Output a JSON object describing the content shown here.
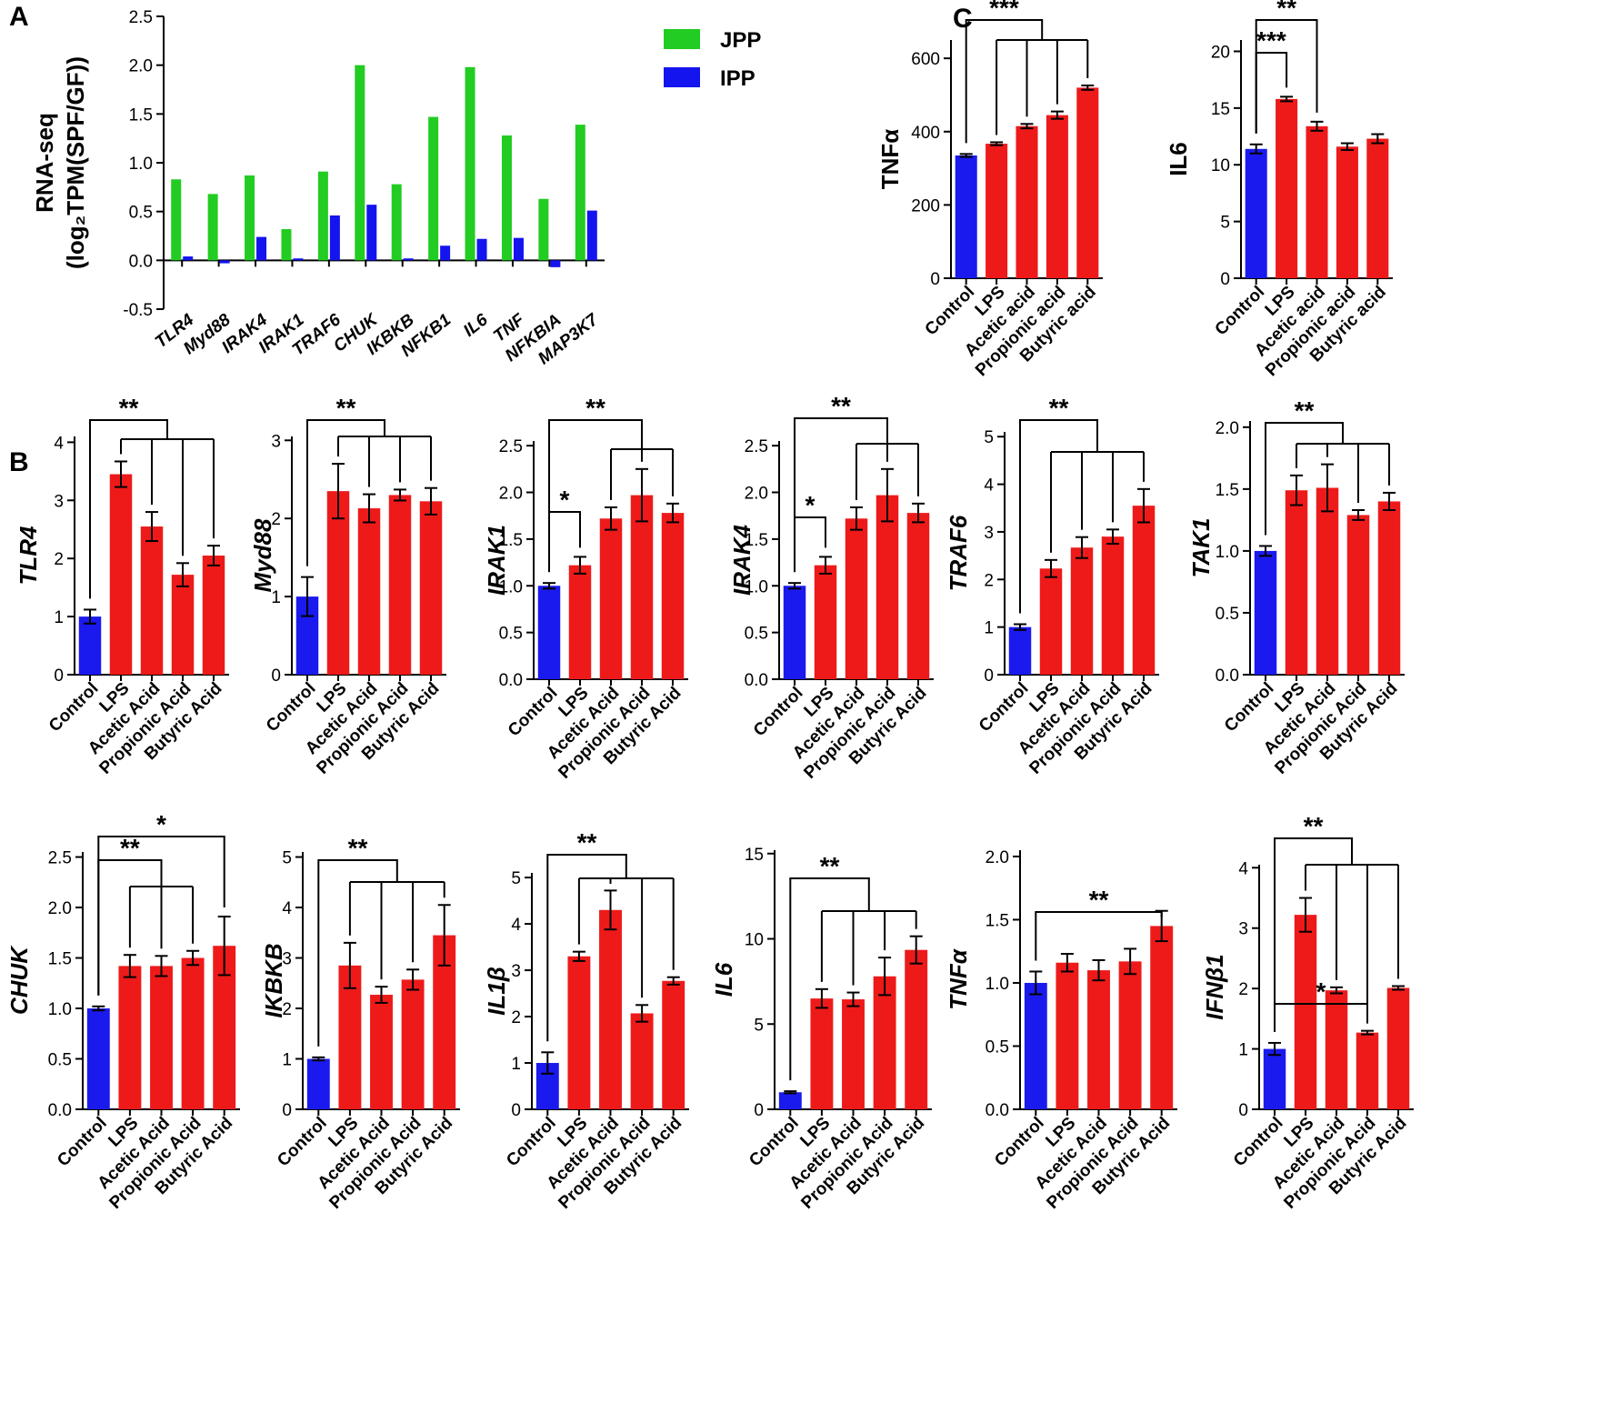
{
  "colors": {
    "jpp": "#22cc22",
    "ipp": "#1414ee",
    "control": "#1a1aee",
    "treatment": "#ee1a1a"
  },
  "panel_letters": [
    "A",
    "B",
    "C"
  ],
  "chart_data": [
    {
      "id": "A",
      "type": "bar",
      "title": "",
      "ylabel_line1": "RNA-seq",
      "ylabel_line2": "(log₂TPM(SPF/GF))",
      "ylim": [
        -0.5,
        2.5
      ],
      "yticks": [
        -0.5,
        0.0,
        0.5,
        1.0,
        1.5,
        2.0,
        2.5
      ],
      "categories": [
        "TLR4",
        "Myd88",
        "IRAK4",
        "IRAK1",
        "TRAF6",
        "CHUK",
        "IKBKB",
        "NFKB1",
        "IL6",
        "TNF",
        "NFKBIA",
        "MAP3K7"
      ],
      "series": [
        {
          "name": "JPP",
          "values": [
            0.83,
            0.68,
            0.87,
            0.32,
            0.91,
            2.0,
            0.78,
            1.47,
            1.98,
            1.28,
            0.63,
            1.39
          ]
        },
        {
          "name": "IPP",
          "values": [
            0.04,
            -0.03,
            0.24,
            0.02,
            0.46,
            0.57,
            0.02,
            0.15,
            0.22,
            0.23,
            -0.07,
            0.51
          ]
        }
      ],
      "legend": [
        "JPP",
        "IPP"
      ]
    },
    {
      "id": "C1",
      "type": "bar",
      "ylabel": "TNFα",
      "italic": false,
      "categories": [
        "Control",
        "LPS",
        "Acetic acid",
        "Propionic acid",
        "Butyric acid"
      ],
      "values": [
        335,
        367,
        415,
        445,
        520
      ],
      "errors": [
        4,
        4,
        6,
        10,
        6
      ],
      "ylim": [
        0,
        650
      ],
      "yticks": [
        0,
        200,
        400,
        600
      ],
      "annotations": [
        "***"
      ]
    },
    {
      "id": "C2",
      "type": "bar",
      "ylabel": "IL6",
      "italic": false,
      "categories": [
        "Control",
        "LPS",
        "Acetic acid",
        "Propionic acid",
        "Butyric acid"
      ],
      "values": [
        11.4,
        15.8,
        13.4,
        11.6,
        12.3
      ],
      "errors": [
        0.4,
        0.2,
        0.4,
        0.3,
        0.4
      ],
      "ylim": [
        0,
        21
      ],
      "yticks": [
        0,
        5,
        10,
        15,
        20
      ],
      "annotations": [
        "**",
        "***"
      ]
    },
    {
      "id": "B1",
      "type": "bar",
      "ylabel": "TLR4",
      "italic": true,
      "categories": [
        "Control",
        "LPS",
        "Acetic Acid",
        "Propionic Acid",
        "Butyric Acid"
      ],
      "values": [
        1.0,
        3.45,
        2.55,
        1.72,
        2.05
      ],
      "errors": [
        0.12,
        0.22,
        0.25,
        0.2,
        0.17
      ],
      "ylim": [
        0,
        4.1
      ],
      "yticks": [
        0,
        1,
        2,
        3,
        4
      ],
      "annotations": [
        "**"
      ]
    },
    {
      "id": "B2",
      "type": "bar",
      "ylabel": "Myd88",
      "italic": true,
      "categories": [
        "Control",
        "LPS",
        "Acetic Acid",
        "Propionic Acid",
        "Butyric Acid"
      ],
      "values": [
        1.0,
        2.35,
        2.13,
        2.3,
        2.22
      ],
      "errors": [
        0.25,
        0.35,
        0.18,
        0.07,
        0.17
      ],
      "ylim": [
        0,
        3.05
      ],
      "yticks": [
        0,
        1,
        2,
        3
      ],
      "annotations": [
        "**"
      ]
    },
    {
      "id": "B3",
      "type": "bar",
      "ylabel": "IRAK1",
      "italic": true,
      "categories": [
        "Control",
        "LPS",
        "Acetic Acid",
        "Propionic Acid",
        "Butyric Acid"
      ],
      "values": [
        1.0,
        1.22,
        1.72,
        1.97,
        1.78
      ],
      "errors": [
        0.03,
        0.09,
        0.12,
        0.28,
        0.1
      ],
      "ylim": [
        0,
        2.55
      ],
      "yticks": [
        "0.0",
        "0.5",
        "1.0",
        "1.5",
        "2.0",
        "2.5"
      ],
      "annotations": [
        "**",
        "*"
      ]
    },
    {
      "id": "B4",
      "type": "bar",
      "ylabel": "IRAK4",
      "italic": true,
      "categories": [
        "Control",
        "LPS",
        "Acetic Acid",
        "Propionic Acid",
        "Butyric Acid"
      ],
      "values": [
        1.0,
        1.22,
        1.72,
        1.97,
        1.78
      ],
      "errors": [
        0.03,
        0.09,
        0.12,
        0.28,
        0.1
      ],
      "ylim": [
        0,
        2.55
      ],
      "yticks": [
        "0.0",
        "0.5",
        "1.0",
        "1.5",
        "2.0",
        "2.5"
      ],
      "annotations": [
        "**",
        "*"
      ]
    },
    {
      "id": "B5",
      "type": "bar",
      "ylabel": "TRAF6",
      "italic": true,
      "categories": [
        "Control",
        "LPS",
        "Acetic Acid",
        "Propionic Acid",
        "Butyric Acid"
      ],
      "values": [
        1.0,
        2.23,
        2.67,
        2.9,
        3.55
      ],
      "errors": [
        0.06,
        0.18,
        0.22,
        0.15,
        0.35
      ],
      "ylim": [
        0,
        5.1
      ],
      "yticks": [
        0,
        1,
        2,
        3,
        4,
        5
      ],
      "annotations": [
        "**"
      ]
    },
    {
      "id": "B6",
      "type": "bar",
      "ylabel": "TAK1",
      "italic": true,
      "categories": [
        "Control",
        "LPS",
        "Acetic Acid",
        "Propionic Acid",
        "Butyric Acid"
      ],
      "values": [
        1.0,
        1.49,
        1.51,
        1.29,
        1.4
      ],
      "errors": [
        0.04,
        0.12,
        0.19,
        0.04,
        0.07
      ],
      "ylim": [
        0,
        2.05
      ],
      "yticks": [
        "0.0",
        "0.5",
        "1.0",
        "1.5",
        "2.0"
      ],
      "annotations": [
        "**"
      ]
    },
    {
      "id": "B7",
      "type": "bar",
      "ylabel": "CHUK",
      "italic": true,
      "categories": [
        "Control",
        "LPS",
        "Acetic Acid",
        "Propionic Acid",
        "Butyric Acid"
      ],
      "values": [
        1.0,
        1.42,
        1.42,
        1.5,
        1.62
      ],
      "errors": [
        0.02,
        0.11,
        0.1,
        0.07,
        0.29
      ],
      "ylim": [
        0,
        2.55
      ],
      "yticks": [
        "0.0",
        "0.5",
        "1.0",
        "1.5",
        "2.0",
        "2.5"
      ],
      "annotations": [
        "*",
        "**"
      ]
    },
    {
      "id": "B8",
      "type": "bar",
      "ylabel": "IKBKB",
      "italic": true,
      "categories": [
        "Control",
        "LPS",
        "Acetic Acid",
        "Propionic Acid",
        "Butyric Acid"
      ],
      "values": [
        1.0,
        2.85,
        2.27,
        2.57,
        3.45
      ],
      "errors": [
        0.03,
        0.45,
        0.16,
        0.2,
        0.6
      ],
      "ylim": [
        0,
        5.1
      ],
      "yticks": [
        0,
        1,
        2,
        3,
        4,
        5
      ],
      "annotations": [
        "**"
      ]
    },
    {
      "id": "B9",
      "type": "bar",
      "ylabel": "IL1β",
      "italic": true,
      "categories": [
        "Control",
        "LPS",
        "Acetic Acid",
        "Propionic Acid",
        "Butyric Acid"
      ],
      "values": [
        1.0,
        3.3,
        4.3,
        2.07,
        2.77
      ],
      "errors": [
        0.23,
        0.1,
        0.42,
        0.18,
        0.08
      ],
      "ylim": [
        0,
        5.1
      ],
      "yticks": [
        0,
        1,
        2,
        3,
        4,
        5
      ],
      "annotations": [
        "**"
      ]
    },
    {
      "id": "B10",
      "type": "bar",
      "ylabel": "IL6",
      "italic": true,
      "categories": [
        "Control",
        "LPS",
        "Acetic Acid",
        "Propionic Acid",
        "Butyric Acid"
      ],
      "values": [
        1.0,
        6.5,
        6.45,
        7.8,
        9.35
      ],
      "errors": [
        0.06,
        0.55,
        0.4,
        1.1,
        0.8
      ],
      "ylim": [
        0,
        15.2
      ],
      "yticks": [
        0,
        5,
        10,
        15
      ],
      "annotations": [
        "**"
      ]
    },
    {
      "id": "B11",
      "type": "bar",
      "ylabel": "TNFα",
      "italic": true,
      "categories": [
        "Control",
        "LPS",
        "Acetic Acid",
        "Propionic Acid",
        "Butyric Acid"
      ],
      "values": [
        1.0,
        1.16,
        1.1,
        1.17,
        1.45
      ],
      "errors": [
        0.09,
        0.07,
        0.08,
        0.1,
        0.12
      ],
      "ylim": [
        0,
        2.05
      ],
      "yticks": [
        "0.0",
        "0.5",
        "1.0",
        "1.5",
        "2.0"
      ],
      "annotations": [
        "**"
      ]
    },
    {
      "id": "B12",
      "type": "bar",
      "ylabel": "IFNβ1",
      "italic": true,
      "categories": [
        "Control",
        "LPS",
        "Acetic Acid",
        "Propionic Acid",
        "Butyric Acid"
      ],
      "values": [
        1.0,
        3.22,
        1.97,
        1.27,
        2.01
      ],
      "errors": [
        0.1,
        0.28,
        0.05,
        0.03,
        0.03
      ],
      "ylim": [
        0,
        4.05
      ],
      "yticks": [
        0,
        1,
        2,
        3,
        4
      ],
      "annotations": [
        "**",
        "*"
      ]
    }
  ]
}
